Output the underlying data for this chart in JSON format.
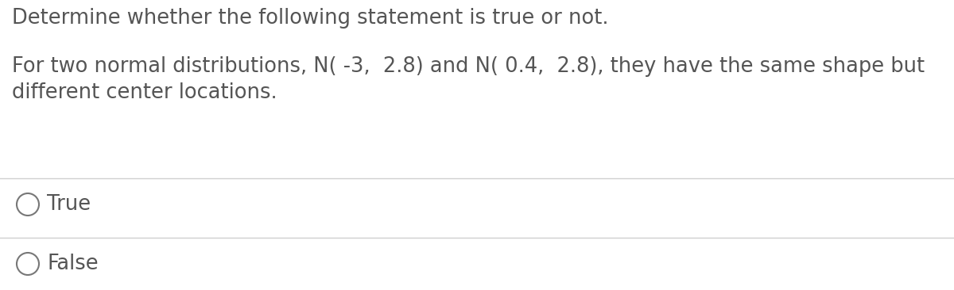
{
  "background_color": "#ffffff",
  "text_color": "#555555",
  "line1": "Determine whether the following statement is true or not.",
  "line2": "For two normal distributions, N( -3,  2.8) and N( 0.4,  2.8), they have the same shape but",
  "line3": "different center locations.",
  "option1": "True",
  "option2": "False",
  "divider_color": "#d0d0d0",
  "circle_color": "#777777",
  "font_size_main": 18.5,
  "font_size_options": 18.5
}
